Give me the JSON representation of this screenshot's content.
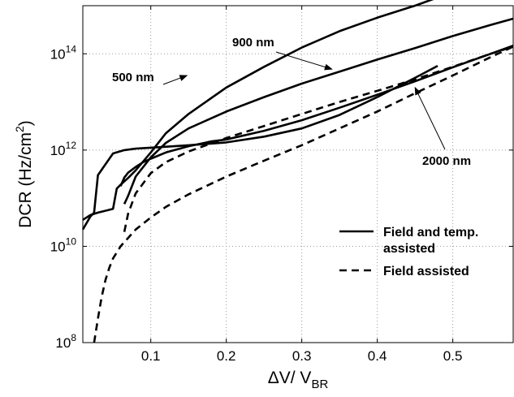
{
  "chart_data": {
    "type": "line",
    "xlabel_main": "ΔV/ V",
    "xlabel_sub": "BR",
    "ylabel_main": "DCR (Hz/cm",
    "ylabel_sup": "2",
    "ylabel_close": ")",
    "xlim": [
      0.01,
      0.58
    ],
    "ylim_log10": [
      8,
      15
    ],
    "yscale": "log",
    "grid": true,
    "x_ticks": [
      0.1,
      0.2,
      0.3,
      0.4,
      0.5
    ],
    "x_tick_labels": [
      "0.1",
      "0.2",
      "0.3",
      "0.4",
      "0.5"
    ],
    "y_ticks": [
      {
        "base": "10",
        "exp": "8",
        "value": 8
      },
      {
        "base": "10",
        "exp": "10",
        "value": 10
      },
      {
        "base": "10",
        "exp": "12",
        "value": 12
      },
      {
        "base": "10",
        "exp": "14",
        "value": 14
      }
    ],
    "annotations": [
      {
        "text": "500 nm",
        "target_x": 0.148,
        "target_log_y": 13.55
      },
      {
        "text": "900 nm",
        "target_x": 0.34,
        "target_log_y": 13.68
      },
      {
        "text": "2000 nm",
        "target_x": 0.45,
        "target_log_y": 13.3
      }
    ],
    "legend": {
      "position": "lower-right",
      "entries": [
        {
          "label_line1": "Field and temp.",
          "label_line2": "assisted",
          "style": "solid"
        },
        {
          "label_line1": "Field assisted",
          "label_line2": "",
          "style": "dashed"
        }
      ]
    },
    "series": [
      {
        "style": "solid",
        "x": [
          0.01,
          0.02,
          0.025,
          0.03,
          0.05,
          0.065,
          0.08,
          0.1,
          0.15,
          0.2,
          0.25,
          0.3,
          0.35,
          0.4,
          0.45,
          0.48
        ],
        "log_y": [
          10.35,
          10.62,
          10.7,
          11.48,
          11.93,
          12.0,
          12.03,
          12.05,
          12.1,
          12.16,
          12.28,
          12.45,
          12.73,
          13.1,
          13.5,
          13.75
        ]
      },
      {
        "style": "solid",
        "x": [
          0.01,
          0.02,
          0.03,
          0.05,
          0.055,
          0.06,
          0.07,
          0.08,
          0.1,
          0.12,
          0.15,
          0.2,
          0.25,
          0.3,
          0.35,
          0.4,
          0.45,
          0.48
        ],
        "log_y": [
          10.55,
          10.65,
          10.7,
          10.78,
          11.2,
          11.28,
          11.42,
          11.58,
          11.95,
          12.35,
          12.75,
          13.3,
          13.73,
          14.13,
          14.47,
          14.75,
          15.0,
          15.17
        ]
      },
      {
        "style": "solid",
        "x": [
          0.065,
          0.07,
          0.08,
          0.1,
          0.12,
          0.15,
          0.2,
          0.25,
          0.3,
          0.35,
          0.4,
          0.45,
          0.5,
          0.55,
          0.58
        ],
        "log_y": [
          10.88,
          11.05,
          11.45,
          11.85,
          12.15,
          12.45,
          12.8,
          13.1,
          13.38,
          13.63,
          13.88,
          14.12,
          14.37,
          14.6,
          14.73
        ]
      },
      {
        "style": "solid",
        "x": [
          0.06,
          0.065,
          0.07,
          0.08,
          0.09,
          0.1,
          0.12,
          0.15,
          0.18,
          0.2,
          0.25,
          0.3,
          0.35,
          0.4,
          0.45,
          0.5,
          0.55,
          0.58
        ],
        "log_y": [
          11.25,
          11.43,
          11.53,
          11.65,
          11.75,
          11.82,
          11.95,
          12.08,
          12.18,
          12.22,
          12.4,
          12.62,
          12.88,
          13.15,
          13.43,
          13.72,
          14.0,
          14.17
        ]
      },
      {
        "style": "dashed",
        "x": [
          0.065,
          0.07,
          0.08,
          0.1,
          0.12,
          0.15,
          0.2,
          0.25,
          0.3,
          0.35,
          0.4,
          0.45,
          0.5,
          0.55,
          0.58
        ],
        "log_y": [
          10.3,
          10.68,
          11.1,
          11.52,
          11.75,
          11.97,
          12.25,
          12.5,
          12.75,
          13.0,
          13.23,
          13.47,
          13.73,
          14.0,
          14.15
        ]
      },
      {
        "style": "dashed",
        "x": [
          0.025,
          0.03,
          0.035,
          0.04,
          0.045,
          0.05,
          0.06,
          0.08,
          0.1,
          0.12,
          0.15,
          0.2,
          0.25,
          0.3,
          0.35,
          0.4,
          0.45,
          0.5,
          0.55,
          0.58
        ],
        "log_y": [
          8.0,
          8.5,
          8.95,
          9.3,
          9.55,
          9.75,
          10.0,
          10.35,
          10.6,
          10.82,
          11.08,
          11.45,
          11.78,
          12.1,
          12.45,
          12.8,
          13.18,
          13.55,
          13.93,
          14.15
        ]
      }
    ]
  }
}
